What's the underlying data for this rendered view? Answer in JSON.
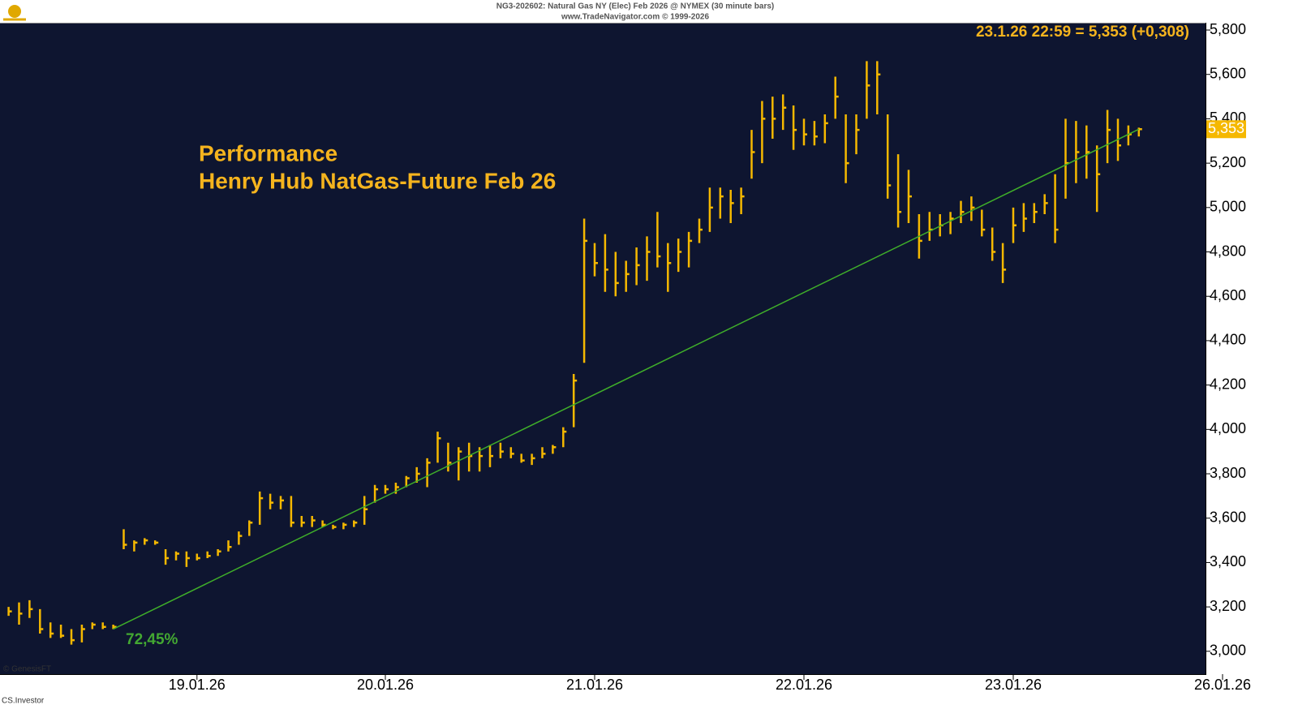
{
  "chart_data": {
    "type": "ohlc",
    "header": "NG3-202602: Natural Gas NY (Elec) Feb 2026 @ NYMEX (30 minute bars)",
    "source": "www.TradeNavigator.com © 1999-2026",
    "title": "Performance",
    "subtitle": "Henry Hub NatGas-Future Feb 26",
    "info": "23.1.26 22:59 = 5,353 (+0,308)",
    "performance": "72,45%",
    "footer_left": "© GenesisFT",
    "footer_bottom": "CS.Investor",
    "last": {
      "value": 5.353,
      "label": "5,353"
    },
    "color": "#f5b800",
    "background": "#0e1530",
    "categories": [
      null,
      null,
      null,
      null,
      null,
      null,
      null,
      null,
      null,
      null,
      null,
      null,
      null,
      null,
      null,
      null,
      null,
      null,
      "19.01.26",
      null,
      null,
      null,
      null,
      null,
      null,
      null,
      null,
      null,
      null,
      null,
      null,
      null,
      null,
      null,
      null,
      null,
      "20.01.26",
      null,
      null,
      null,
      null,
      null,
      null,
      null,
      null,
      null,
      null,
      null,
      null,
      null,
      null,
      null,
      null,
      null,
      null,
      null,
      "21.01.26",
      null,
      null,
      null,
      null,
      null,
      null,
      null,
      null,
      null,
      null,
      null,
      null,
      null,
      null,
      null,
      null,
      null,
      null,
      null,
      "22.01.26",
      null,
      null,
      null,
      null,
      null,
      null,
      null,
      null,
      null,
      null,
      null,
      null,
      null,
      null,
      null,
      null,
      null,
      null,
      null,
      "23.01.26",
      null,
      null,
      null,
      null,
      null,
      null,
      null,
      null,
      null,
      null,
      null,
      null,
      null,
      null,
      null,
      null,
      null,
      null,
      null,
      "26.01.26"
    ],
    "high": [
      3.2,
      3.22,
      3.23,
      3.19,
      3.13,
      3.12,
      3.1,
      3.12,
      3.13,
      3.13,
      3.12,
      3.55,
      3.5,
      3.51,
      3.5,
      3.46,
      3.45,
      3.45,
      3.44,
      3.45,
      3.46,
      3.5,
      3.54,
      3.59,
      3.72,
      3.71,
      3.7,
      3.7,
      3.61,
      3.61,
      3.59,
      3.57,
      3.58,
      3.59,
      3.7,
      3.75,
      3.75,
      3.76,
      3.79,
      3.83,
      3.87,
      3.99,
      3.94,
      3.92,
      3.94,
      3.92,
      3.93,
      3.94,
      3.92,
      3.89,
      3.89,
      3.92,
      3.93,
      4.01,
      4.25,
      4.95,
      4.84,
      4.88,
      4.8,
      4.76,
      4.82,
      4.87,
      4.98,
      4.84,
      4.86,
      4.89,
      4.95,
      5.09,
      5.09,
      5.08,
      5.09,
      5.35,
      5.48,
      5.5,
      5.51,
      5.46,
      5.4,
      5.39,
      5.42,
      5.59,
      5.42,
      5.42,
      5.66,
      5.66,
      5.42,
      5.24,
      5.17,
      4.97,
      4.98,
      4.97,
      4.98,
      5.03,
      5.05,
      4.99,
      4.91,
      4.84,
      5.0,
      5.02,
      5.02,
      5.06,
      5.15,
      5.4,
      5.39,
      5.37,
      5.28,
      5.44,
      5.4,
      5.37,
      5.36,
      null,
      null,
      null,
      null,
      null,
      null,
      null,
      null
    ],
    "low": [
      3.16,
      3.12,
      3.15,
      3.08,
      3.06,
      3.06,
      3.03,
      3.04,
      3.1,
      3.1,
      3.1,
      3.46,
      3.45,
      3.48,
      3.48,
      3.39,
      3.41,
      3.38,
      3.41,
      3.42,
      3.43,
      3.45,
      3.48,
      3.52,
      3.57,
      3.64,
      3.64,
      3.56,
      3.56,
      3.56,
      3.56,
      3.55,
      3.55,
      3.56,
      3.57,
      3.67,
      3.71,
      3.71,
      3.74,
      3.76,
      3.74,
      3.85,
      3.81,
      3.77,
      3.81,
      3.81,
      3.83,
      3.87,
      3.87,
      3.85,
      3.84,
      3.87,
      3.89,
      3.92,
      4.01,
      4.3,
      4.69,
      4.62,
      4.6,
      4.62,
      4.65,
      4.67,
      4.73,
      4.62,
      4.71,
      4.73,
      4.84,
      4.89,
      4.95,
      4.93,
      4.97,
      5.13,
      5.2,
      5.31,
      5.35,
      5.26,
      5.28,
      5.28,
      5.29,
      5.4,
      5.11,
      5.24,
      5.4,
      5.42,
      5.04,
      4.91,
      4.93,
      4.77,
      4.85,
      4.87,
      4.88,
      4.93,
      4.94,
      4.87,
      4.76,
      4.66,
      4.84,
      4.89,
      4.93,
      4.97,
      4.84,
      5.04,
      5.11,
      5.13,
      4.98,
      5.2,
      5.21,
      5.28,
      5.32,
      null,
      null,
      null,
      null,
      null,
      null,
      null,
      null
    ],
    "close": [
      3.18,
      3.17,
      3.19,
      3.1,
      3.08,
      3.07,
      3.05,
      3.1,
      3.12,
      3.11,
      3.11,
      3.48,
      3.49,
      3.5,
      3.49,
      3.42,
      3.44,
      3.42,
      3.42,
      3.43,
      3.45,
      3.47,
      3.52,
      3.58,
      3.69,
      3.67,
      3.68,
      3.58,
      3.58,
      3.59,
      3.57,
      3.56,
      3.57,
      3.58,
      3.64,
      3.73,
      3.73,
      3.74,
      3.78,
      3.8,
      3.85,
      3.96,
      3.85,
      3.9,
      3.88,
      3.88,
      3.88,
      3.9,
      3.89,
      3.86,
      3.87,
      3.89,
      3.92,
      3.99,
      4.22,
      4.85,
      4.75,
      4.72,
      4.66,
      4.7,
      4.74,
      4.8,
      4.78,
      4.75,
      4.8,
      4.85,
      4.9,
      5.0,
      5.05,
      5.02,
      5.05,
      5.25,
      5.4,
      5.4,
      5.45,
      5.35,
      5.33,
      5.32,
      5.38,
      5.5,
      5.2,
      5.35,
      5.55,
      5.6,
      5.1,
      4.98,
      5.05,
      4.85,
      4.9,
      4.92,
      4.95,
      4.98,
      5.0,
      4.9,
      4.8,
      4.72,
      4.92,
      4.95,
      4.98,
      5.02,
      4.9,
      5.2,
      5.25,
      5.25,
      5.15,
      5.35,
      5.28,
      5.33,
      5.353,
      null,
      null,
      null,
      null,
      null,
      null,
      null,
      null
    ],
    "trendline": {
      "color": "#3fae2a",
      "x": [
        10,
        108
      ],
      "values": [
        3.1,
        5.353
      ]
    },
    "ylim": [
      2.897,
      5.833
    ],
    "yticks": [
      {
        "value": 3.0,
        "label": "3,000"
      },
      {
        "value": 3.2,
        "label": "3,200"
      },
      {
        "value": 3.4,
        "label": "3,400"
      },
      {
        "value": 3.6,
        "label": "3,600"
      },
      {
        "value": 3.8,
        "label": "3,800"
      },
      {
        "value": 4.0,
        "label": "4,000"
      },
      {
        "value": 4.2,
        "label": "4,200"
      },
      {
        "value": 4.4,
        "label": "4,400"
      },
      {
        "value": 4.6,
        "label": "4,600"
      },
      {
        "value": 4.8,
        "label": "4,800"
      },
      {
        "value": 5.0,
        "label": "5,000"
      },
      {
        "value": 5.2,
        "label": "5,200"
      },
      {
        "value": 5.4,
        "label": "5,400"
      },
      {
        "value": 5.6,
        "label": "5,600"
      },
      {
        "value": 5.8,
        "label": "5,800"
      }
    ]
  }
}
